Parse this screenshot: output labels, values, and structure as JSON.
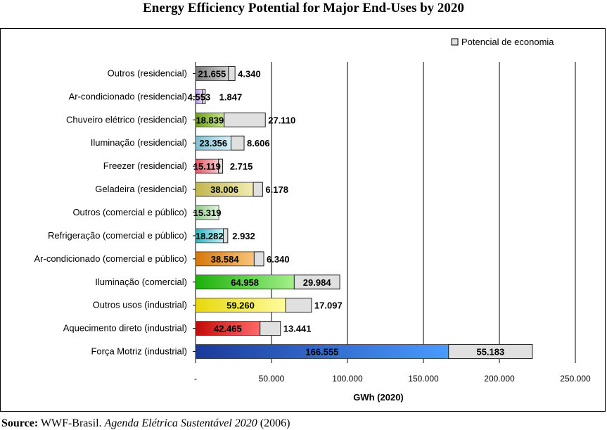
{
  "title": "Energy Efficiency Potential for Major End-Uses by 2020",
  "source": {
    "label": "Source:",
    "org": "WWF-Brasil.",
    "title": "Agenda Elétrica Sustentável 2020",
    "year": "(2006)"
  },
  "colors": {
    "savings_fill": "#e0e0e0",
    "bar_colors": [
      "#7a7a7a",
      "#b48fe0",
      "#6fa01a",
      "#7fc0d2",
      "#e05a66",
      "#c2b64e",
      "#8fcc8a",
      "#2bb6c4",
      "#d6780a",
      "#1bb00a",
      "#e8d80a",
      "#c00a0a",
      "#1a3a9a"
    ],
    "bar_colors_light": [
      "#cfcfcf",
      "#e8dcf8",
      "#c8e68a",
      "#d8f0f6",
      "#f6c8cc",
      "#f0ecb4",
      "#e2f4dc",
      "#bff0f6",
      "#f8c47a",
      "#a4f08a",
      "#fffc9e",
      "#ff6a6a",
      "#4a9aff"
    ]
  },
  "chart_data": {
    "type": "bar",
    "orientation": "horizontal",
    "stacked": true,
    "categories": [
      "Outros (residencial)",
      "Ar-condicionado (residencial)",
      "Chuveiro elétrico (residencial)",
      "Iluminação (residencial)",
      "Freezer (residencial)",
      "Geladeira (residencial)",
      "Outros (comercial e público)",
      "Refrigeração (comercial e público)",
      "Ar-condicionado (comercial e público)",
      "Iluminação (comercial)",
      "Outros usos (industrial)",
      "Aquecimento direto (industrial)",
      "Força Motriz (industrial)"
    ],
    "series": [
      {
        "values": [
          21655,
          4553,
          18839,
          23356,
          15119,
          38006,
          15319,
          18282,
          38584,
          64958,
          59260,
          42465,
          166555
        ],
        "labels": [
          "21.655",
          "4.553",
          "18.839",
          "23.356",
          "15.119",
          "38.006",
          "15.319",
          "18.282",
          "38.584",
          "64.958",
          "59.260",
          "42.465",
          "166.555"
        ]
      },
      {
        "name": "Potencial de economia",
        "values": [
          4340,
          1847,
          27110,
          8606,
          2715,
          6178,
          null,
          2932,
          6340,
          29984,
          17097,
          13441,
          55183
        ],
        "labels": [
          "4.340",
          "1.847",
          "27.110",
          "8.606",
          "2.715",
          "6.178",
          "",
          "2.932",
          "6.340",
          "29.984",
          "17.097",
          "13.441",
          "55.183"
        ]
      }
    ],
    "xlabel": "GWh (2020)",
    "xlim": [
      0,
      250000
    ],
    "xticks": [
      0,
      50000,
      100000,
      150000,
      200000,
      250000
    ],
    "xtick_labels": [
      "-",
      "50.000",
      "100.000",
      "150.000",
      "200.000",
      "250.000"
    ],
    "grid": true,
    "legend_position": "top-right"
  }
}
